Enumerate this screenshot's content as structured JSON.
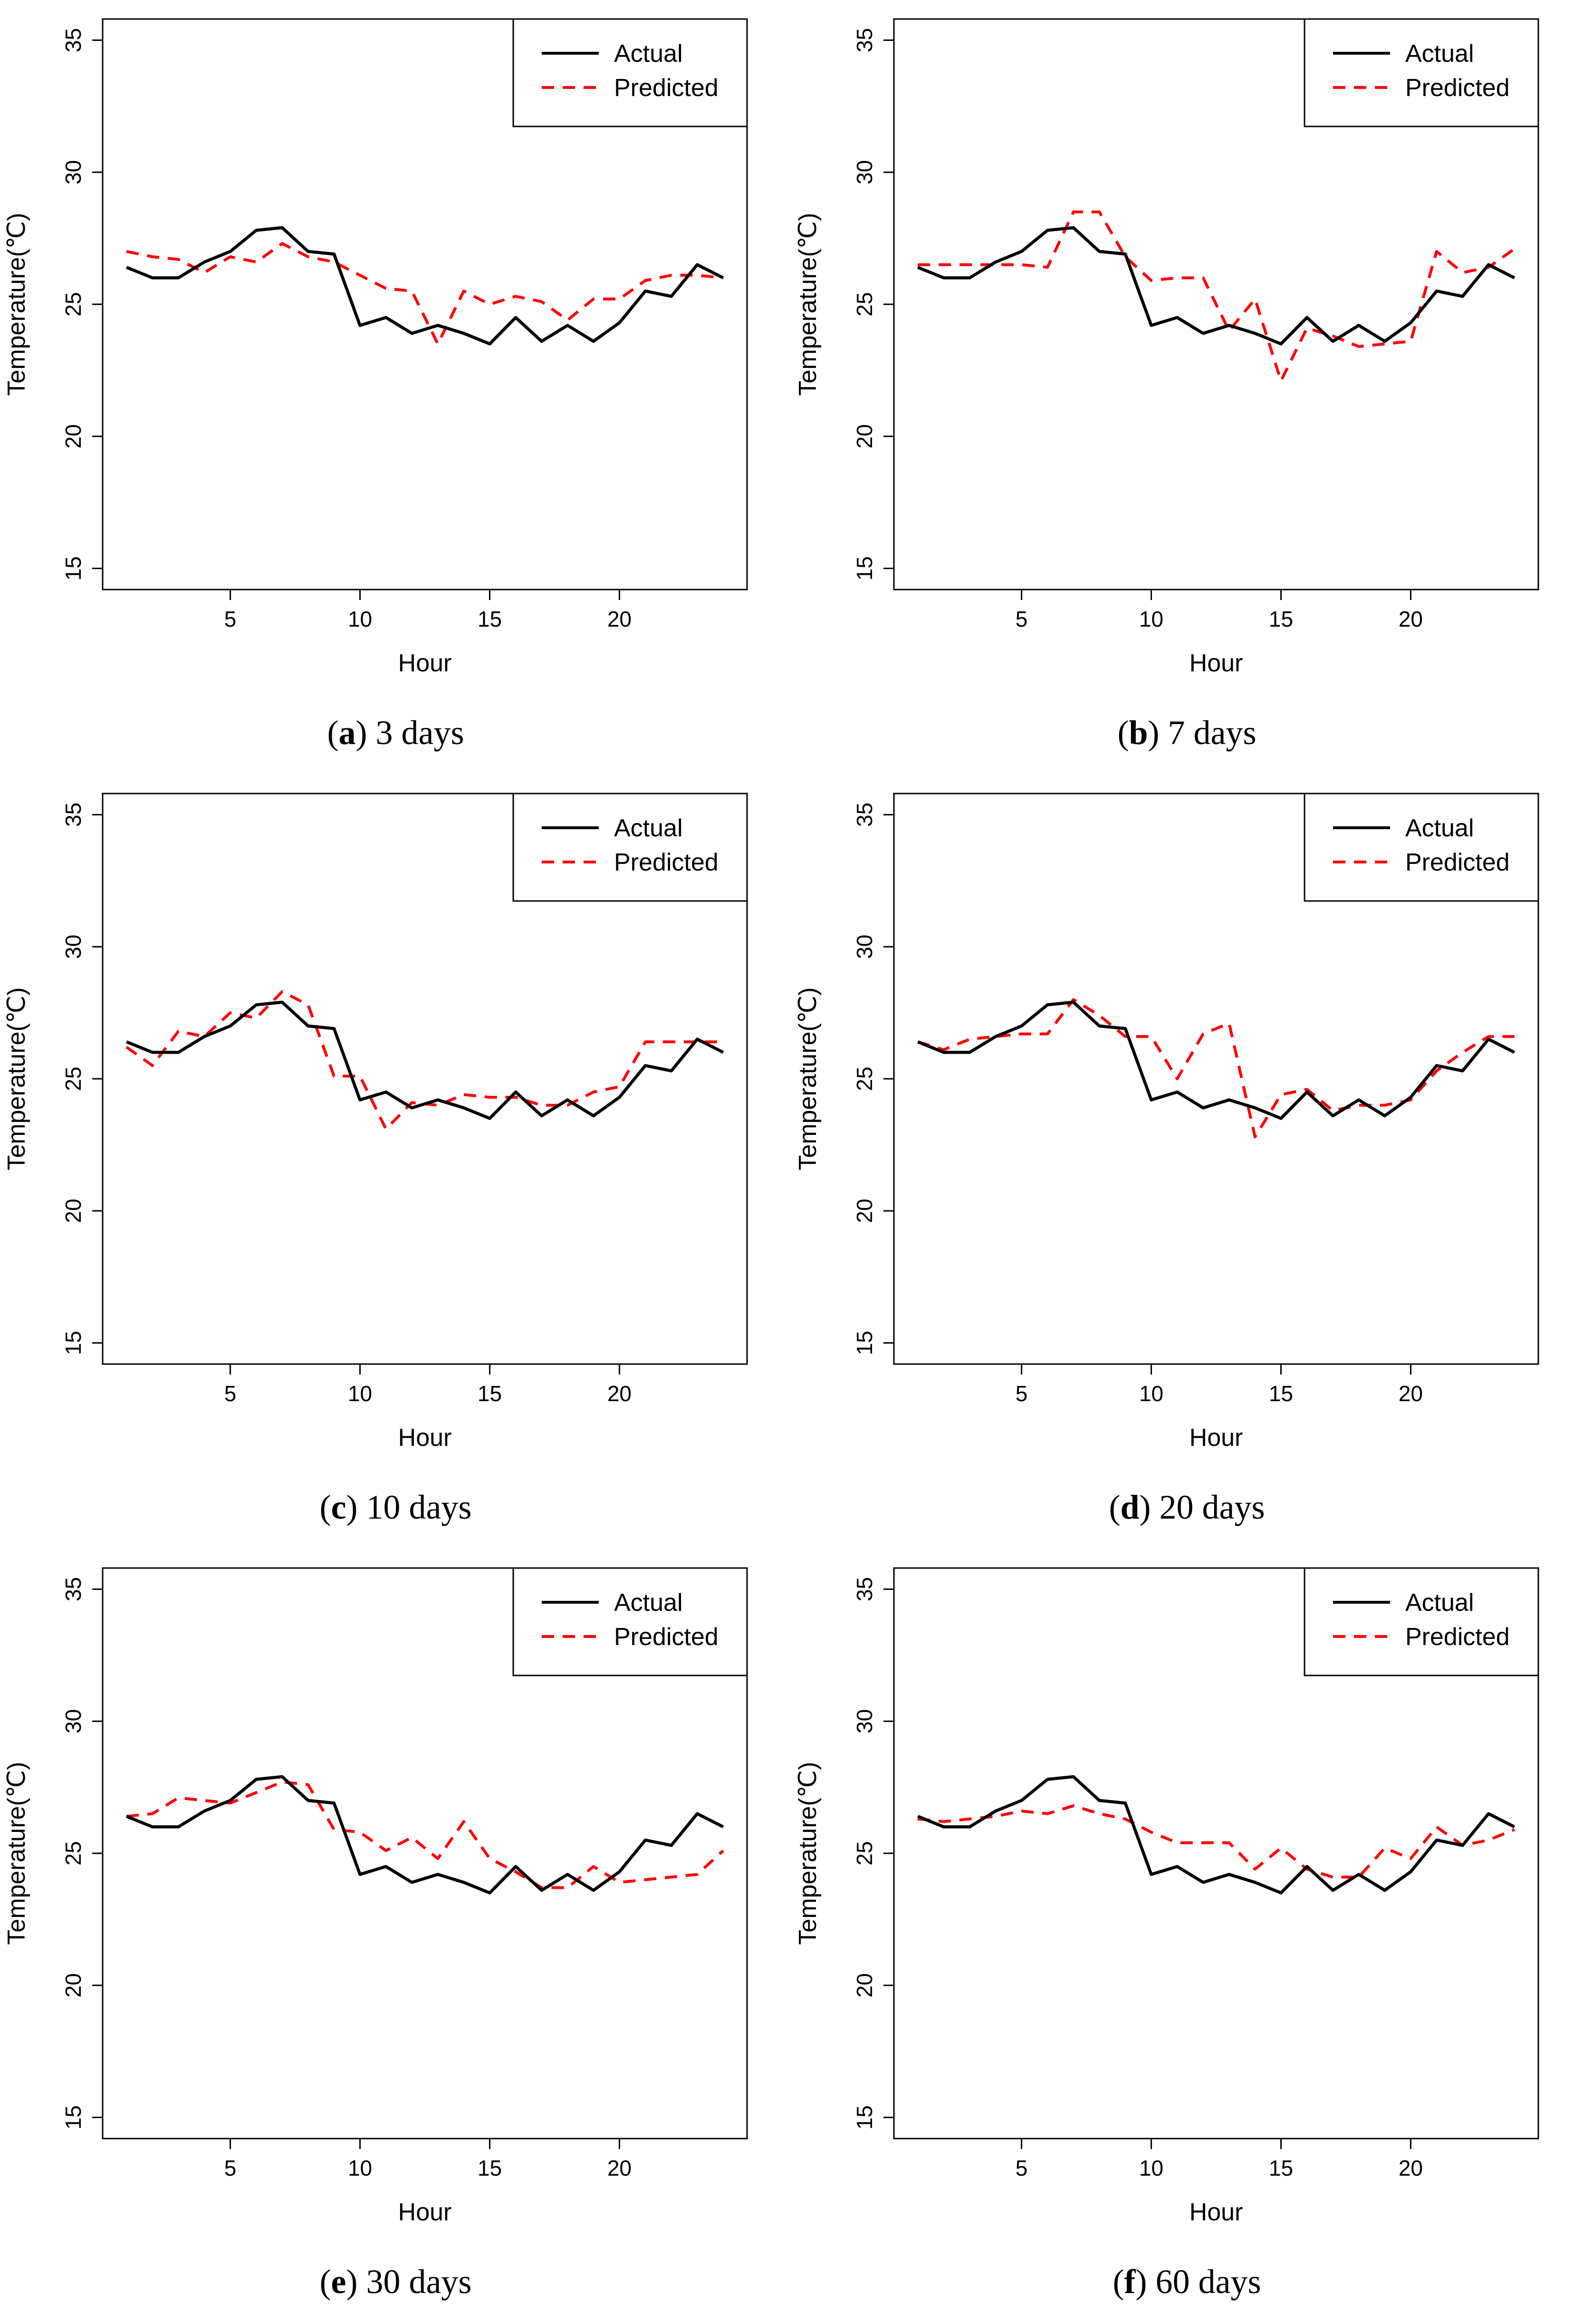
{
  "colors": {
    "actual": "#000000",
    "predicted": "#ff0000"
  },
  "chart_data": [
    {
      "type": "line",
      "id": "a",
      "caption_letter": "a",
      "caption_text": " 3 days",
      "xlabel": "Hour",
      "ylabel": "Temperature(℃)",
      "xlim": [
        1,
        24
      ],
      "ylim": [
        15,
        35
      ],
      "xticks": [
        5,
        10,
        15,
        20
      ],
      "yticks": [
        15,
        20,
        25,
        30,
        35
      ],
      "legend": {
        "position": "top-right",
        "entries": [
          "Actual",
          "Predicted"
        ]
      },
      "x": [
        1,
        2,
        3,
        4,
        5,
        6,
        7,
        8,
        9,
        10,
        11,
        12,
        13,
        14,
        15,
        16,
        17,
        18,
        19,
        20,
        21,
        22,
        23,
        24
      ],
      "series": [
        {
          "name": "Actual",
          "style": "solid",
          "values": [
            26.4,
            26.0,
            26.0,
            26.6,
            27.0,
            27.8,
            27.9,
            27.0,
            26.9,
            24.2,
            24.5,
            23.9,
            24.2,
            23.9,
            23.5,
            24.5,
            23.6,
            24.2,
            23.6,
            24.3,
            25.5,
            25.3,
            26.5,
            26.0
          ]
        },
        {
          "name": "Predicted",
          "style": "dashed",
          "values": [
            27.0,
            26.8,
            26.7,
            26.2,
            26.8,
            26.6,
            27.3,
            26.8,
            26.6,
            26.1,
            25.6,
            25.5,
            23.5,
            25.5,
            25.0,
            25.3,
            25.1,
            24.4,
            25.2,
            25.2,
            25.9,
            26.1,
            26.1,
            26.0
          ]
        }
      ]
    },
    {
      "type": "line",
      "id": "b",
      "caption_letter": "b",
      "caption_text": " 7 days",
      "xlabel": "Hour",
      "ylabel": "Temperature(℃)",
      "xlim": [
        1,
        24
      ],
      "ylim": [
        15,
        35
      ],
      "xticks": [
        5,
        10,
        15,
        20
      ],
      "yticks": [
        15,
        20,
        25,
        30,
        35
      ],
      "legend": {
        "position": "top-right",
        "entries": [
          "Actual",
          "Predicted"
        ]
      },
      "x": [
        1,
        2,
        3,
        4,
        5,
        6,
        7,
        8,
        9,
        10,
        11,
        12,
        13,
        14,
        15,
        16,
        17,
        18,
        19,
        20,
        21,
        22,
        23,
        24
      ],
      "series": [
        {
          "name": "Actual",
          "style": "solid",
          "values": [
            26.4,
            26.0,
            26.0,
            26.6,
            27.0,
            27.8,
            27.9,
            27.0,
            26.9,
            24.2,
            24.5,
            23.9,
            24.2,
            23.9,
            23.5,
            24.5,
            23.6,
            24.2,
            23.6,
            24.3,
            25.5,
            25.3,
            26.5,
            26.0
          ]
        },
        {
          "name": "Predicted",
          "style": "dashed",
          "values": [
            26.5,
            26.5,
            26.5,
            26.5,
            26.5,
            26.4,
            28.5,
            28.5,
            26.8,
            25.9,
            26.0,
            26.0,
            24.0,
            25.2,
            22.1,
            24.1,
            23.8,
            23.4,
            23.5,
            23.6,
            27.0,
            26.2,
            26.4,
            27.1
          ]
        }
      ]
    },
    {
      "type": "line",
      "id": "c",
      "caption_letter": "c",
      "caption_text": " 10 days",
      "xlabel": "Hour",
      "ylabel": "Temperature(℃)",
      "xlim": [
        1,
        24
      ],
      "ylim": [
        15,
        35
      ],
      "xticks": [
        5,
        10,
        15,
        20
      ],
      "yticks": [
        15,
        20,
        25,
        30,
        35
      ],
      "legend": {
        "position": "top-right",
        "entries": [
          "Actual",
          "Predicted"
        ]
      },
      "x": [
        1,
        2,
        3,
        4,
        5,
        6,
        7,
        8,
        9,
        10,
        11,
        12,
        13,
        14,
        15,
        16,
        17,
        18,
        19,
        20,
        21,
        22,
        23,
        24
      ],
      "series": [
        {
          "name": "Actual",
          "style": "solid",
          "values": [
            26.4,
            26.0,
            26.0,
            26.6,
            27.0,
            27.8,
            27.9,
            27.0,
            26.9,
            24.2,
            24.5,
            23.9,
            24.2,
            23.9,
            23.5,
            24.5,
            23.6,
            24.2,
            23.6,
            24.3,
            25.5,
            25.3,
            26.5,
            26.0
          ]
        },
        {
          "name": "Predicted",
          "style": "dashed",
          "values": [
            26.2,
            25.5,
            26.8,
            26.6,
            27.5,
            27.3,
            28.3,
            27.8,
            25.1,
            25.1,
            23.1,
            24.1,
            24.0,
            24.4,
            24.3,
            24.3,
            24.0,
            24.0,
            24.5,
            24.7,
            26.4,
            26.4,
            26.4,
            26.4
          ]
        }
      ]
    },
    {
      "type": "line",
      "id": "d",
      "caption_letter": "d",
      "caption_text": " 20 days",
      "xlabel": "Hour",
      "ylabel": "Temperature(℃)",
      "xlim": [
        1,
        24
      ],
      "ylim": [
        15,
        35
      ],
      "xticks": [
        5,
        10,
        15,
        20
      ],
      "yticks": [
        15,
        20,
        25,
        30,
        35
      ],
      "legend": {
        "position": "top-right",
        "entries": [
          "Actual",
          "Predicted"
        ]
      },
      "x": [
        1,
        2,
        3,
        4,
        5,
        6,
        7,
        8,
        9,
        10,
        11,
        12,
        13,
        14,
        15,
        16,
        17,
        18,
        19,
        20,
        21,
        22,
        23,
        24
      ],
      "series": [
        {
          "name": "Actual",
          "style": "solid",
          "values": [
            26.4,
            26.0,
            26.0,
            26.6,
            27.0,
            27.8,
            27.9,
            27.0,
            26.9,
            24.2,
            24.5,
            23.9,
            24.2,
            23.9,
            23.5,
            24.5,
            23.6,
            24.2,
            23.6,
            24.3,
            25.5,
            25.3,
            26.5,
            26.0
          ]
        },
        {
          "name": "Predicted",
          "style": "dashed",
          "values": [
            26.4,
            26.1,
            26.5,
            26.6,
            26.7,
            26.7,
            28.0,
            27.4,
            26.6,
            26.6,
            25.0,
            26.7,
            27.1,
            22.8,
            24.4,
            24.6,
            23.8,
            24.0,
            24.0,
            24.2,
            25.3,
            26.0,
            26.6,
            26.6
          ]
        }
      ]
    },
    {
      "type": "line",
      "id": "e",
      "caption_letter": "e",
      "caption_text": " 30 days",
      "xlabel": "Hour",
      "ylabel": "Temperature(℃)",
      "xlim": [
        1,
        24
      ],
      "ylim": [
        15,
        35
      ],
      "xticks": [
        5,
        10,
        15,
        20
      ],
      "yticks": [
        15,
        20,
        25,
        30,
        35
      ],
      "legend": {
        "position": "top-right",
        "entries": [
          "Actual",
          "Predicted"
        ]
      },
      "x": [
        1,
        2,
        3,
        4,
        5,
        6,
        7,
        8,
        9,
        10,
        11,
        12,
        13,
        14,
        15,
        16,
        17,
        18,
        19,
        20,
        21,
        22,
        23,
        24
      ],
      "series": [
        {
          "name": "Actual",
          "style": "solid",
          "values": [
            26.4,
            26.0,
            26.0,
            26.6,
            27.0,
            27.8,
            27.9,
            27.0,
            26.9,
            24.2,
            24.5,
            23.9,
            24.2,
            23.9,
            23.5,
            24.5,
            23.6,
            24.2,
            23.6,
            24.3,
            25.5,
            25.3,
            26.5,
            26.0
          ]
        },
        {
          "name": "Predicted",
          "style": "dashed",
          "values": [
            26.4,
            26.5,
            27.1,
            27.0,
            26.9,
            27.3,
            27.7,
            27.6,
            25.9,
            25.8,
            25.1,
            25.6,
            24.8,
            26.2,
            24.8,
            24.3,
            23.7,
            23.7,
            24.5,
            23.9,
            24.0,
            24.1,
            24.2,
            25.1
          ]
        }
      ]
    },
    {
      "type": "line",
      "id": "f",
      "caption_letter": "f",
      "caption_text": " 60 days",
      "xlabel": "Hour",
      "ylabel": "Temperature(℃)",
      "xlim": [
        1,
        24
      ],
      "ylim": [
        15,
        35
      ],
      "xticks": [
        5,
        10,
        15,
        20
      ],
      "yticks": [
        15,
        20,
        25,
        30,
        35
      ],
      "legend": {
        "position": "top-right",
        "entries": [
          "Actual",
          "Predicted"
        ]
      },
      "x": [
        1,
        2,
        3,
        4,
        5,
        6,
        7,
        8,
        9,
        10,
        11,
        12,
        13,
        14,
        15,
        16,
        17,
        18,
        19,
        20,
        21,
        22,
        23,
        24
      ],
      "series": [
        {
          "name": "Actual",
          "style": "solid",
          "values": [
            26.4,
            26.0,
            26.0,
            26.6,
            27.0,
            27.8,
            27.9,
            27.0,
            26.9,
            24.2,
            24.5,
            23.9,
            24.2,
            23.9,
            23.5,
            24.5,
            23.6,
            24.2,
            23.6,
            24.3,
            25.5,
            25.3,
            26.5,
            26.0
          ]
        },
        {
          "name": "Predicted",
          "style": "dashed",
          "values": [
            26.3,
            26.2,
            26.3,
            26.4,
            26.6,
            26.5,
            26.8,
            26.5,
            26.3,
            25.8,
            25.4,
            25.4,
            25.4,
            24.4,
            25.2,
            24.4,
            24.1,
            24.1,
            25.2,
            24.8,
            26.0,
            25.3,
            25.5,
            25.9
          ]
        }
      ]
    }
  ]
}
